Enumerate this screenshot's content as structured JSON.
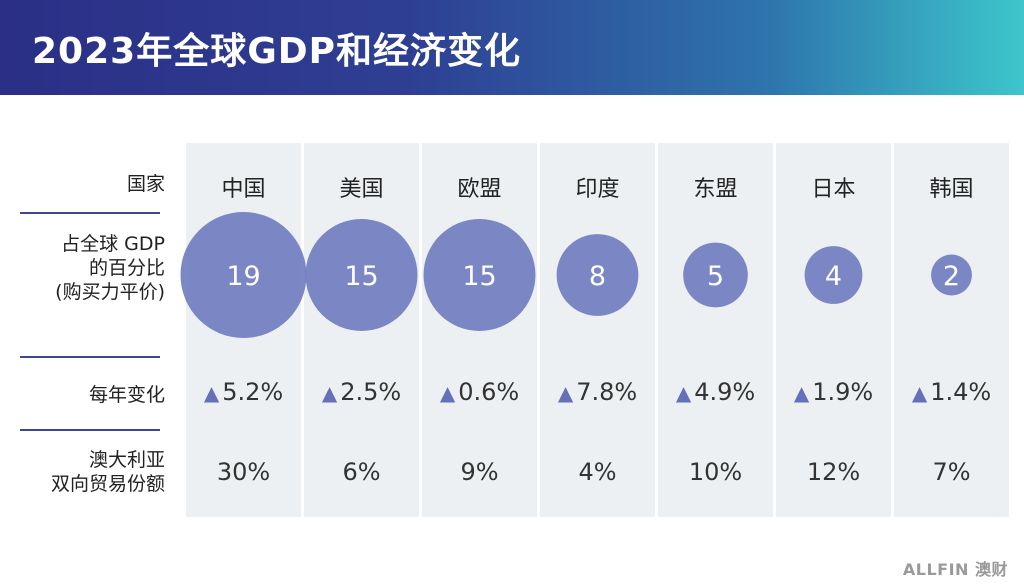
{
  "header": {
    "title": "2023年全球GDP和经济变化"
  },
  "row_labels": {
    "country": "国家",
    "gdp_share": [
      "占全球 GDP",
      "的百分比",
      "(购买力平价)"
    ],
    "annual_change": "每年变化",
    "trade_share": [
      "澳大利亚",
      "双向贸易份额"
    ]
  },
  "chart_data": {
    "type": "table",
    "title": "2023年全球GDP和经济变化",
    "countries": [
      "中国",
      "美国",
      "欧盟",
      "印度",
      "东盟",
      "日本",
      "韩国"
    ],
    "gdp_share_ppp": [
      19,
      15,
      15,
      8,
      5,
      4,
      2
    ],
    "annual_change": [
      "5.2%",
      "2.5%",
      "0.6%",
      "7.8%",
      "4.9%",
      "1.9%",
      "1.4%"
    ],
    "annual_change_direction": [
      "up",
      "up",
      "up",
      "up",
      "up",
      "up",
      "up"
    ],
    "australia_two_way_trade_share": [
      "30%",
      "6%",
      "9%",
      "4%",
      "10%",
      "12%",
      "7%"
    ],
    "bubble_color": "#6a78bd",
    "triangle_color": "#6470b8"
  },
  "logo": {
    "text": "ALLFIN 澳财"
  }
}
